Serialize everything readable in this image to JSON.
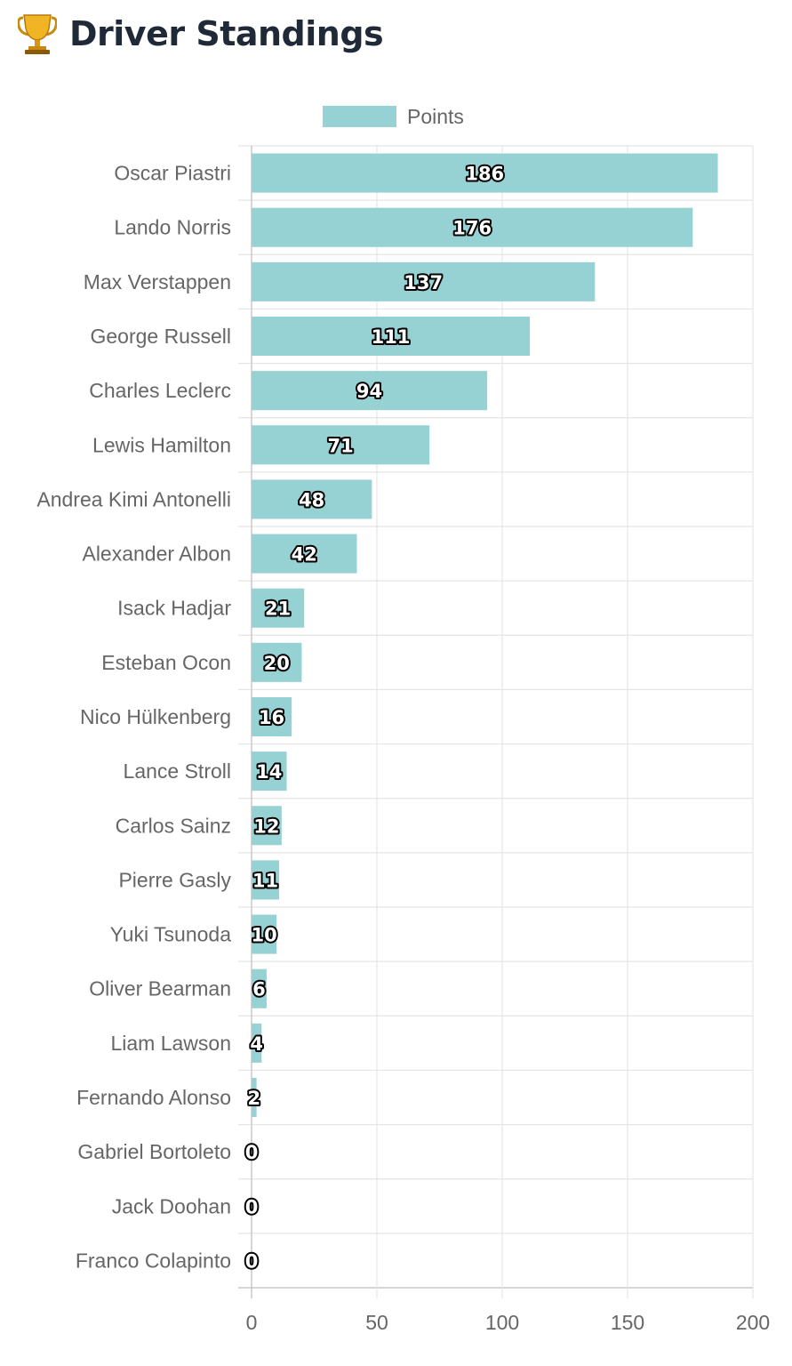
{
  "header": {
    "title": "Driver Standings",
    "icon": "trophy-icon"
  },
  "chart_data": {
    "type": "bar",
    "orientation": "horizontal",
    "categories": [
      "Oscar Piastri",
      "Lando Norris",
      "Max Verstappen",
      "George Russell",
      "Charles Leclerc",
      "Lewis Hamilton",
      "Andrea Kimi Antonelli",
      "Alexander Albon",
      "Isack Hadjar",
      "Esteban Ocon",
      "Nico Hülkenberg",
      "Lance Stroll",
      "Carlos Sainz",
      "Pierre Gasly",
      "Yuki Tsunoda",
      "Oliver Bearman",
      "Liam Lawson",
      "Fernando Alonso",
      "Gabriel Bortoleto",
      "Jack Doohan",
      "Franco Colapinto"
    ],
    "series": [
      {
        "name": "Points",
        "values": [
          186,
          176,
          137,
          111,
          94,
          71,
          48,
          42,
          21,
          20,
          16,
          14,
          12,
          11,
          10,
          6,
          4,
          2,
          0,
          0,
          0
        ]
      }
    ],
    "data_labels": [
      "186",
      "176",
      "137",
      "111",
      "94",
      "71",
      "48",
      "42",
      "21",
      "20",
      "16",
      "14",
      "12",
      "11",
      "10",
      "6",
      "4",
      "2",
      "0",
      "0",
      "0"
    ],
    "xlim": [
      0,
      200
    ],
    "x_ticks": [
      "0",
      "50",
      "100",
      "150",
      "200"
    ],
    "title": "",
    "xlabel": "",
    "ylabel": "",
    "legend": "top",
    "grid": true,
    "colors": {
      "bar_fill": "#96d1d3",
      "grid": "#e5e5e5",
      "axis": "#c8c8c8"
    }
  }
}
